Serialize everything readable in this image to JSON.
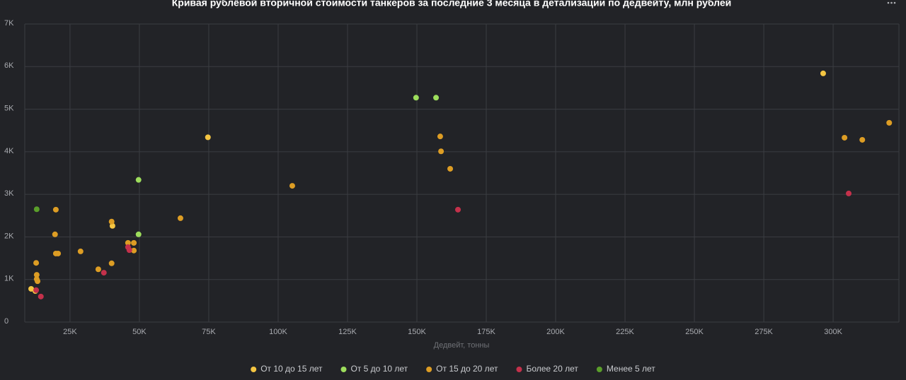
{
  "chart_data": {
    "type": "scatter",
    "title": "Кривая рублёвой вторичной стоимости танкеров за последние 3 месяца в детализации по дедвейту, млн рублей",
    "x_label": "Дедвейт, тонны",
    "xlim": [
      8700,
      323700
    ],
    "ylim": [
      0,
      7000
    ],
    "xticks": [
      {
        "value": 25000,
        "label": "25K"
      },
      {
        "value": 50000,
        "label": "50K"
      },
      {
        "value": 75000,
        "label": "75K"
      },
      {
        "value": 100000,
        "label": "100K"
      },
      {
        "value": 125000,
        "label": "125K"
      },
      {
        "value": 150000,
        "label": "150K"
      },
      {
        "value": 175000,
        "label": "175K"
      },
      {
        "value": 200000,
        "label": "200K"
      },
      {
        "value": 225000,
        "label": "225K"
      },
      {
        "value": 250000,
        "label": "250K"
      },
      {
        "value": 275000,
        "label": "275K"
      },
      {
        "value": 300000,
        "label": "300K"
      }
    ],
    "yticks": [
      0,
      {
        "value": 1000,
        "label": "1K"
      },
      {
        "value": 2000,
        "label": "2K"
      },
      {
        "value": 3000,
        "label": "3K"
      },
      {
        "value": 4000,
        "label": "4K"
      },
      {
        "value": 5000,
        "label": "5K"
      },
      {
        "value": 6000,
        "label": "6K"
      },
      {
        "value": 7000,
        "label": "7K"
      }
    ],
    "grid": true,
    "legend": "bottom",
    "series": [
      {
        "name": "От 10 до 15 лет",
        "color": "#f4c542",
        "x": [
          296400,
          74700,
          40300,
          11000,
          12500
        ],
        "values": [
          5840,
          4340,
          2260,
          780,
          730
        ]
      },
      {
        "name": "От 5 до 10 лет",
        "color": "#9ddd5c",
        "x": [
          149700,
          156900,
          49700,
          49700
        ],
        "values": [
          5270,
          5270,
          3340,
          2060
        ]
      },
      {
        "name": "От 15 до 20 лет",
        "color": "#dd9d24",
        "x": [
          320200,
          304100,
          310500,
          158400,
          158700,
          162000,
          105100,
          64800,
          40000,
          19900,
          19600,
          19900,
          20700,
          28800,
          35200,
          40000,
          45900,
          48000,
          48000,
          12800,
          13000,
          13000,
          13300
        ],
        "values": [
          4680,
          4330,
          4280,
          4360,
          4010,
          3600,
          3200,
          2440,
          2360,
          2640,
          2060,
          1610,
          1610,
          1660,
          1240,
          1380,
          1860,
          1860,
          1680,
          1390,
          1110,
          1010,
          960
        ]
      },
      {
        "name": "Более 20 лет",
        "color": "#c4314b",
        "x": [
          305600,
          164800,
          37200,
          14500,
          12800,
          45900,
          46400
        ],
        "values": [
          3020,
          2640,
          1160,
          600,
          750,
          1760,
          1690
        ]
      },
      {
        "name": "Менее 5 лет",
        "color": "#5a9e2a",
        "x": [
          13000
        ],
        "values": [
          2650
        ]
      }
    ]
  }
}
